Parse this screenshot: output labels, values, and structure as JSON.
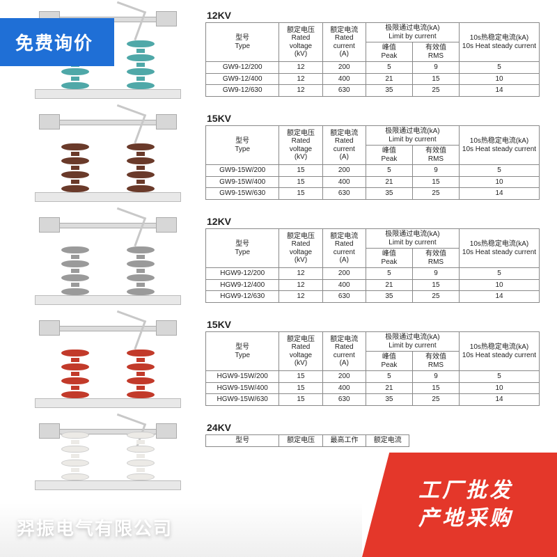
{
  "badge_top": "免费询价",
  "brand": "羿振电气有限公司",
  "promo": {
    "line1": "工厂批发",
    "line2": "产地采购"
  },
  "headers": {
    "type_cn": "型号",
    "type_en": "Type",
    "volt_cn": "额定电压",
    "volt_en": "Rated voltage",
    "volt_unit": "(kV)",
    "curr_cn": "额定电流",
    "curr_en": "Rated current",
    "curr_unit": "(A)",
    "limit_cn": "极限通过电流(kA)",
    "limit_en": "Limit by current",
    "peak_cn": "峰值",
    "peak_en": "Peak",
    "rms_cn": "有效值",
    "rms_en": "RMS",
    "heat_cn": "10s热稳定电流(kA)",
    "heat_en": "10s Heat steady current"
  },
  "headers24": {
    "volt_cn": "额定电压",
    "work_cn": "最高工作",
    "curr_cn": "额定电流"
  },
  "sections": [
    {
      "title": "12KV",
      "variant": "teal",
      "rows": [
        {
          "type": "GW9-12/200",
          "v": "12",
          "a": "200",
          "peak": "5",
          "rms": "9",
          "heat": "5"
        },
        {
          "type": "GW9-12/400",
          "v": "12",
          "a": "400",
          "peak": "21",
          "rms": "15",
          "heat": "10"
        },
        {
          "type": "GW9-12/630",
          "v": "12",
          "a": "630",
          "peak": "35",
          "rms": "25",
          "heat": "14"
        }
      ]
    },
    {
      "title": "15KV",
      "variant": "brown",
      "rows": [
        {
          "type": "GW9-15W/200",
          "v": "15",
          "a": "200",
          "peak": "5",
          "rms": "9",
          "heat": "5"
        },
        {
          "type": "GW9-15W/400",
          "v": "15",
          "a": "400",
          "peak": "21",
          "rms": "15",
          "heat": "10"
        },
        {
          "type": "GW9-15W/630",
          "v": "15",
          "a": "630",
          "peak": "35",
          "rms": "25",
          "heat": "14"
        }
      ]
    },
    {
      "title": "12KV",
      "variant": "grey",
      "rows": [
        {
          "type": "HGW9-12/200",
          "v": "12",
          "a": "200",
          "peak": "5",
          "rms": "9",
          "heat": "5"
        },
        {
          "type": "HGW9-12/400",
          "v": "12",
          "a": "400",
          "peak": "21",
          "rms": "15",
          "heat": "10"
        },
        {
          "type": "HGW9-12/630",
          "v": "12",
          "a": "630",
          "peak": "35",
          "rms": "25",
          "heat": "14"
        }
      ]
    },
    {
      "title": "15KV",
      "variant": "red",
      "rows": [
        {
          "type": "HGW9-15W/200",
          "v": "15",
          "a": "200",
          "peak": "5",
          "rms": "9",
          "heat": "5"
        },
        {
          "type": "HGW9-15W/400",
          "v": "15",
          "a": "400",
          "peak": "21",
          "rms": "15",
          "heat": "10"
        },
        {
          "type": "HGW9-15W/630",
          "v": "15",
          "a": "630",
          "peak": "35",
          "rms": "25",
          "heat": "14"
        }
      ]
    }
  ],
  "section5_title": "24KV",
  "colors": {
    "badge_bg": "#1f6fd6",
    "promo_bg": "#e4372a",
    "teal": "#4fa8a8",
    "brown": "#6a3a2a",
    "grey": "#9a9a9a",
    "red": "#c23a2a",
    "white": "#eceae6",
    "border": "#888888",
    "text": "#222222"
  }
}
